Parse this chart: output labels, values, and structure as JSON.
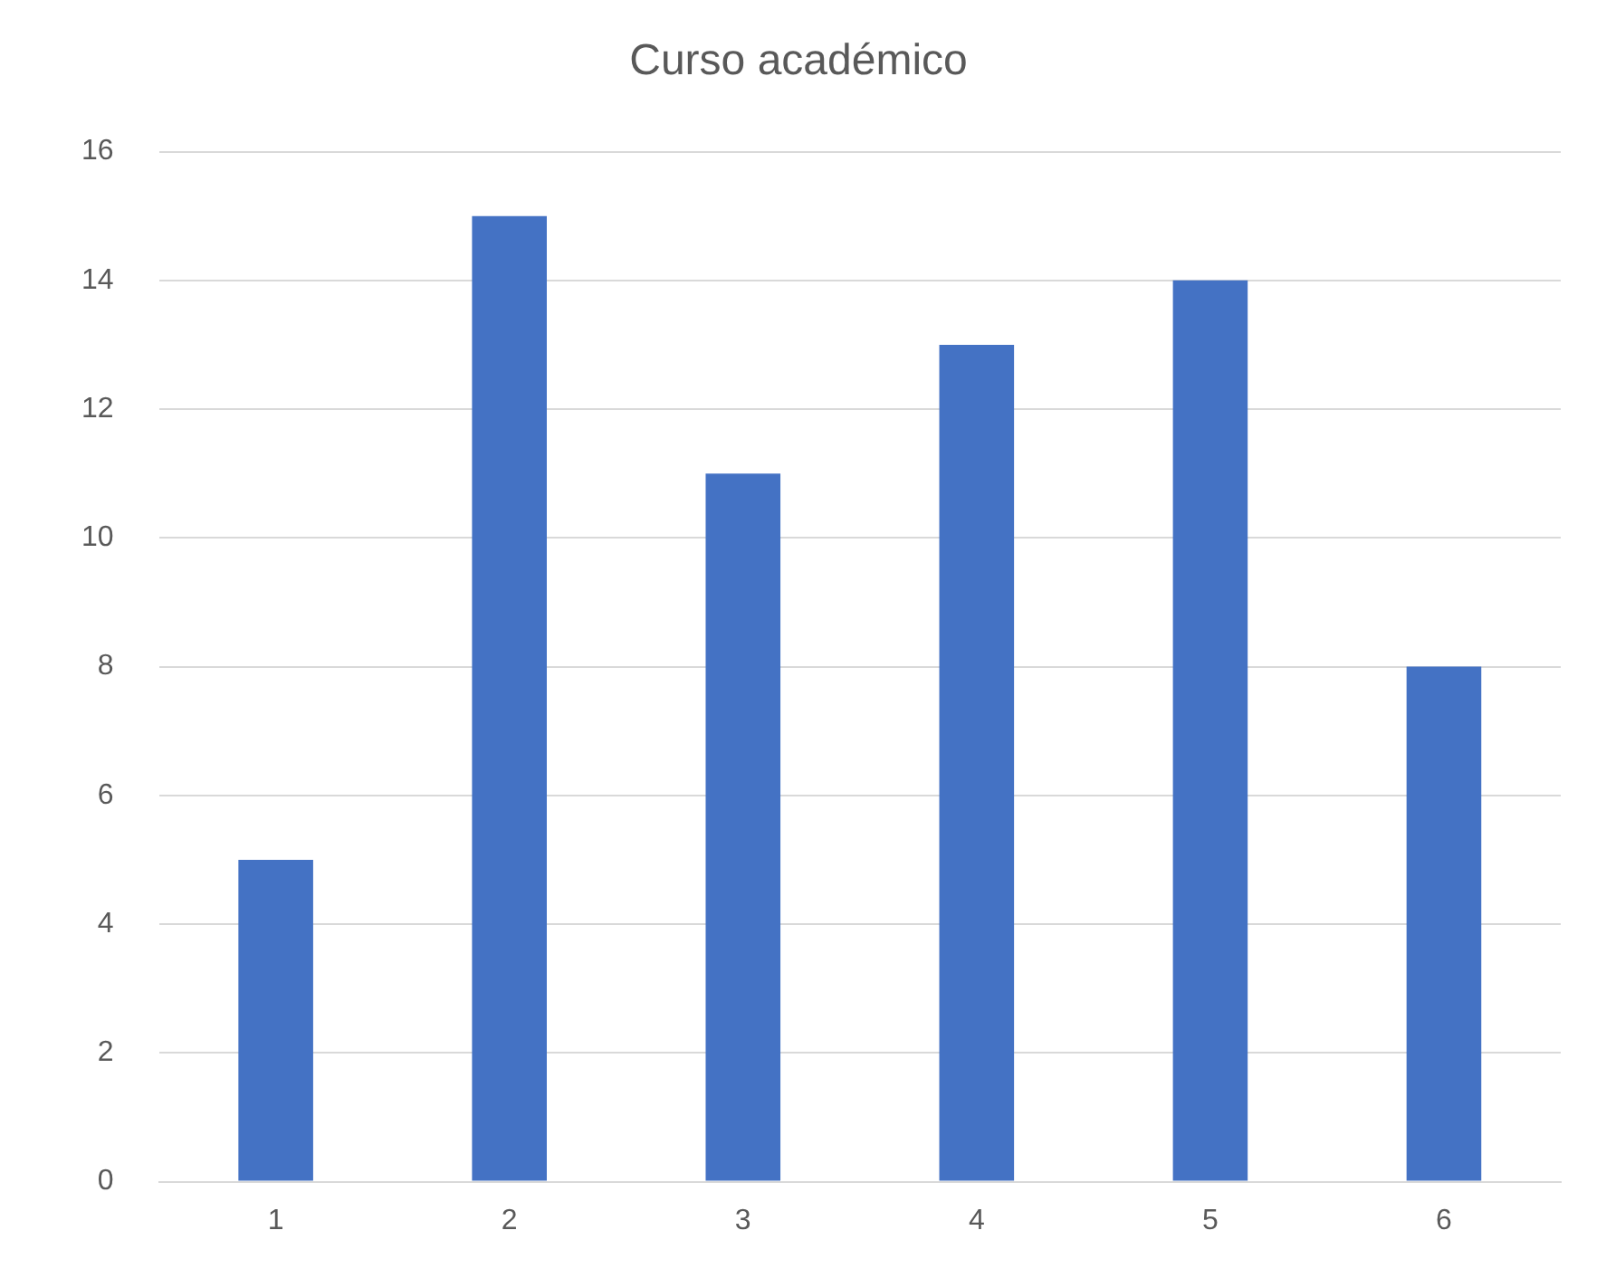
{
  "chart_data": {
    "type": "bar",
    "title": "Curso académico",
    "categories": [
      "1",
      "2",
      "3",
      "4",
      "5",
      "6"
    ],
    "values": [
      5,
      15,
      11,
      13,
      14,
      8
    ],
    "color": "#4472c4",
    "ylim": [
      0,
      16
    ],
    "yticks": [
      0,
      2,
      4,
      6,
      8,
      10,
      12,
      14,
      16
    ],
    "grid": "y"
  }
}
